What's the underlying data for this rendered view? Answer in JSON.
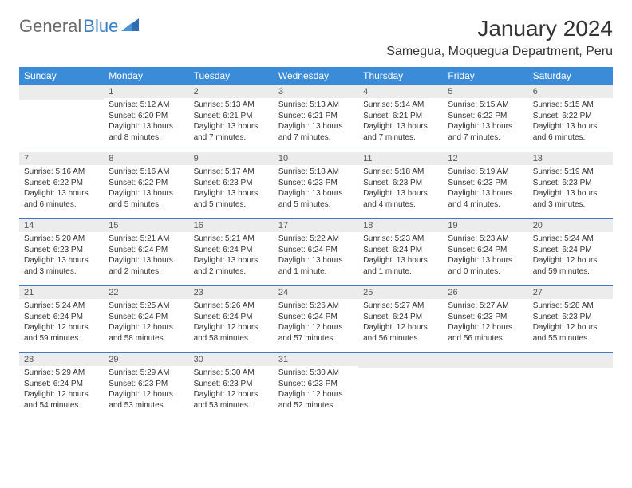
{
  "logo": {
    "text1": "General",
    "text2": "Blue"
  },
  "title": "January 2024",
  "location": "Samegua, Moquegua Department, Peru",
  "colors": {
    "header_bg": "#3a8bd8",
    "header_fg": "#ffffff",
    "row_sep": "#3a7fc4",
    "daynum_bg": "#ececec",
    "page_bg": "#ffffff",
    "text": "#333333",
    "logo_grey": "#6b6b6b",
    "logo_blue": "#3a7fc4"
  },
  "weekdays": [
    "Sunday",
    "Monday",
    "Tuesday",
    "Wednesday",
    "Thursday",
    "Friday",
    "Saturday"
  ],
  "weeks": [
    [
      {
        "n": "",
        "lines": []
      },
      {
        "n": "1",
        "lines": [
          "Sunrise: 5:12 AM",
          "Sunset: 6:20 PM",
          "Daylight: 13 hours",
          "and 8 minutes."
        ]
      },
      {
        "n": "2",
        "lines": [
          "Sunrise: 5:13 AM",
          "Sunset: 6:21 PM",
          "Daylight: 13 hours",
          "and 7 minutes."
        ]
      },
      {
        "n": "3",
        "lines": [
          "Sunrise: 5:13 AM",
          "Sunset: 6:21 PM",
          "Daylight: 13 hours",
          "and 7 minutes."
        ]
      },
      {
        "n": "4",
        "lines": [
          "Sunrise: 5:14 AM",
          "Sunset: 6:21 PM",
          "Daylight: 13 hours",
          "and 7 minutes."
        ]
      },
      {
        "n": "5",
        "lines": [
          "Sunrise: 5:15 AM",
          "Sunset: 6:22 PM",
          "Daylight: 13 hours",
          "and 7 minutes."
        ]
      },
      {
        "n": "6",
        "lines": [
          "Sunrise: 5:15 AM",
          "Sunset: 6:22 PM",
          "Daylight: 13 hours",
          "and 6 minutes."
        ]
      }
    ],
    [
      {
        "n": "7",
        "lines": [
          "Sunrise: 5:16 AM",
          "Sunset: 6:22 PM",
          "Daylight: 13 hours",
          "and 6 minutes."
        ]
      },
      {
        "n": "8",
        "lines": [
          "Sunrise: 5:16 AM",
          "Sunset: 6:22 PM",
          "Daylight: 13 hours",
          "and 5 minutes."
        ]
      },
      {
        "n": "9",
        "lines": [
          "Sunrise: 5:17 AM",
          "Sunset: 6:23 PM",
          "Daylight: 13 hours",
          "and 5 minutes."
        ]
      },
      {
        "n": "10",
        "lines": [
          "Sunrise: 5:18 AM",
          "Sunset: 6:23 PM",
          "Daylight: 13 hours",
          "and 5 minutes."
        ]
      },
      {
        "n": "11",
        "lines": [
          "Sunrise: 5:18 AM",
          "Sunset: 6:23 PM",
          "Daylight: 13 hours",
          "and 4 minutes."
        ]
      },
      {
        "n": "12",
        "lines": [
          "Sunrise: 5:19 AM",
          "Sunset: 6:23 PM",
          "Daylight: 13 hours",
          "and 4 minutes."
        ]
      },
      {
        "n": "13",
        "lines": [
          "Sunrise: 5:19 AM",
          "Sunset: 6:23 PM",
          "Daylight: 13 hours",
          "and 3 minutes."
        ]
      }
    ],
    [
      {
        "n": "14",
        "lines": [
          "Sunrise: 5:20 AM",
          "Sunset: 6:23 PM",
          "Daylight: 13 hours",
          "and 3 minutes."
        ]
      },
      {
        "n": "15",
        "lines": [
          "Sunrise: 5:21 AM",
          "Sunset: 6:24 PM",
          "Daylight: 13 hours",
          "and 2 minutes."
        ]
      },
      {
        "n": "16",
        "lines": [
          "Sunrise: 5:21 AM",
          "Sunset: 6:24 PM",
          "Daylight: 13 hours",
          "and 2 minutes."
        ]
      },
      {
        "n": "17",
        "lines": [
          "Sunrise: 5:22 AM",
          "Sunset: 6:24 PM",
          "Daylight: 13 hours",
          "and 1 minute."
        ]
      },
      {
        "n": "18",
        "lines": [
          "Sunrise: 5:23 AM",
          "Sunset: 6:24 PM",
          "Daylight: 13 hours",
          "and 1 minute."
        ]
      },
      {
        "n": "19",
        "lines": [
          "Sunrise: 5:23 AM",
          "Sunset: 6:24 PM",
          "Daylight: 13 hours",
          "and 0 minutes."
        ]
      },
      {
        "n": "20",
        "lines": [
          "Sunrise: 5:24 AM",
          "Sunset: 6:24 PM",
          "Daylight: 12 hours",
          "and 59 minutes."
        ]
      }
    ],
    [
      {
        "n": "21",
        "lines": [
          "Sunrise: 5:24 AM",
          "Sunset: 6:24 PM",
          "Daylight: 12 hours",
          "and 59 minutes."
        ]
      },
      {
        "n": "22",
        "lines": [
          "Sunrise: 5:25 AM",
          "Sunset: 6:24 PM",
          "Daylight: 12 hours",
          "and 58 minutes."
        ]
      },
      {
        "n": "23",
        "lines": [
          "Sunrise: 5:26 AM",
          "Sunset: 6:24 PM",
          "Daylight: 12 hours",
          "and 58 minutes."
        ]
      },
      {
        "n": "24",
        "lines": [
          "Sunrise: 5:26 AM",
          "Sunset: 6:24 PM",
          "Daylight: 12 hours",
          "and 57 minutes."
        ]
      },
      {
        "n": "25",
        "lines": [
          "Sunrise: 5:27 AM",
          "Sunset: 6:24 PM",
          "Daylight: 12 hours",
          "and 56 minutes."
        ]
      },
      {
        "n": "26",
        "lines": [
          "Sunrise: 5:27 AM",
          "Sunset: 6:23 PM",
          "Daylight: 12 hours",
          "and 56 minutes."
        ]
      },
      {
        "n": "27",
        "lines": [
          "Sunrise: 5:28 AM",
          "Sunset: 6:23 PM",
          "Daylight: 12 hours",
          "and 55 minutes."
        ]
      }
    ],
    [
      {
        "n": "28",
        "lines": [
          "Sunrise: 5:29 AM",
          "Sunset: 6:24 PM",
          "Daylight: 12 hours",
          "and 54 minutes."
        ]
      },
      {
        "n": "29",
        "lines": [
          "Sunrise: 5:29 AM",
          "Sunset: 6:23 PM",
          "Daylight: 12 hours",
          "and 53 minutes."
        ]
      },
      {
        "n": "30",
        "lines": [
          "Sunrise: 5:30 AM",
          "Sunset: 6:23 PM",
          "Daylight: 12 hours",
          "and 53 minutes."
        ]
      },
      {
        "n": "31",
        "lines": [
          "Sunrise: 5:30 AM",
          "Sunset: 6:23 PM",
          "Daylight: 12 hours",
          "and 52 minutes."
        ]
      },
      {
        "n": "",
        "lines": []
      },
      {
        "n": "",
        "lines": []
      },
      {
        "n": "",
        "lines": []
      }
    ]
  ]
}
